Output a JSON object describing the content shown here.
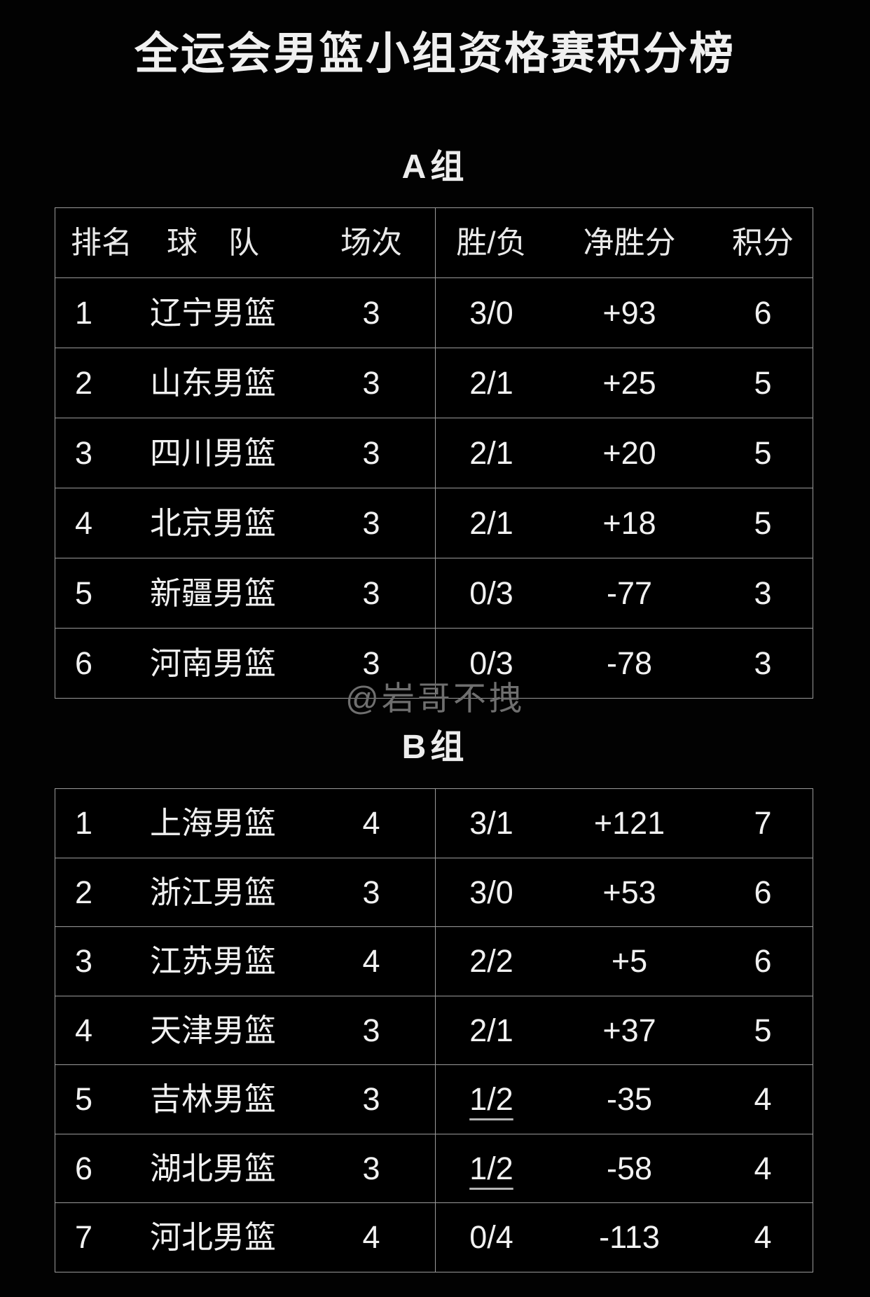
{
  "title": "全运会男篮小组资格赛积分榜",
  "watermark": "@岩哥不拽",
  "table_header": {
    "rank": "排名",
    "team": "球　队",
    "games": "场次",
    "wl": "胜/负",
    "diff": "净胜分",
    "pts": "积分"
  },
  "groups_ui": [
    {
      "label": "A组",
      "has_header": true
    },
    {
      "label": "B组",
      "has_header": false
    }
  ],
  "colors": {
    "background": "#020202",
    "border": "#9b9b9b",
    "text": "#f1f1f1",
    "watermark": "#6f6f6f"
  },
  "chart_data": {
    "type": "table",
    "title": "全运会男篮小组资格赛积分榜",
    "columns": [
      "排名",
      "球队",
      "场次",
      "胜/负",
      "净胜分",
      "积分"
    ],
    "groups": [
      {
        "name": "A组",
        "rows": [
          {
            "rank": "1",
            "team": "辽宁男篮",
            "games": "3",
            "wl": "3/0",
            "diff": "+93",
            "pts": "6",
            "wl_underline": false
          },
          {
            "rank": "2",
            "team": "山东男篮",
            "games": "3",
            "wl": "2/1",
            "diff": "+25",
            "pts": "5",
            "wl_underline": false
          },
          {
            "rank": "3",
            "team": "四川男篮",
            "games": "3",
            "wl": "2/1",
            "diff": "+20",
            "pts": "5",
            "wl_underline": false
          },
          {
            "rank": "4",
            "team": "北京男篮",
            "games": "3",
            "wl": "2/1",
            "diff": "+18",
            "pts": "5",
            "wl_underline": false
          },
          {
            "rank": "5",
            "team": "新疆男篮",
            "games": "3",
            "wl": "0/3",
            "diff": "-77",
            "pts": "3",
            "wl_underline": false
          },
          {
            "rank": "6",
            "team": "河南男篮",
            "games": "3",
            "wl": "0/3",
            "diff": "-78",
            "pts": "3",
            "wl_underline": false
          }
        ]
      },
      {
        "name": "B组",
        "rows": [
          {
            "rank": "1",
            "team": "上海男篮",
            "games": "4",
            "wl": "3/1",
            "diff": "+121",
            "pts": "7",
            "wl_underline": false
          },
          {
            "rank": "2",
            "team": "浙江男篮",
            "games": "3",
            "wl": "3/0",
            "diff": "+53",
            "pts": "6",
            "wl_underline": false
          },
          {
            "rank": "3",
            "team": "江苏男篮",
            "games": "4",
            "wl": "2/2",
            "diff": "+5",
            "pts": "6",
            "wl_underline": false
          },
          {
            "rank": "4",
            "team": "天津男篮",
            "games": "3",
            "wl": "2/1",
            "diff": "+37",
            "pts": "5",
            "wl_underline": false
          },
          {
            "rank": "5",
            "team": "吉林男篮",
            "games": "3",
            "wl": "1/2",
            "diff": "-35",
            "pts": "4",
            "wl_underline": true
          },
          {
            "rank": "6",
            "team": "湖北男篮",
            "games": "3",
            "wl": "1/2",
            "diff": "-58",
            "pts": "4",
            "wl_underline": true
          },
          {
            "rank": "7",
            "team": "河北男篮",
            "games": "4",
            "wl": "0/4",
            "diff": "-113",
            "pts": "4",
            "wl_underline": false
          }
        ]
      }
    ]
  }
}
